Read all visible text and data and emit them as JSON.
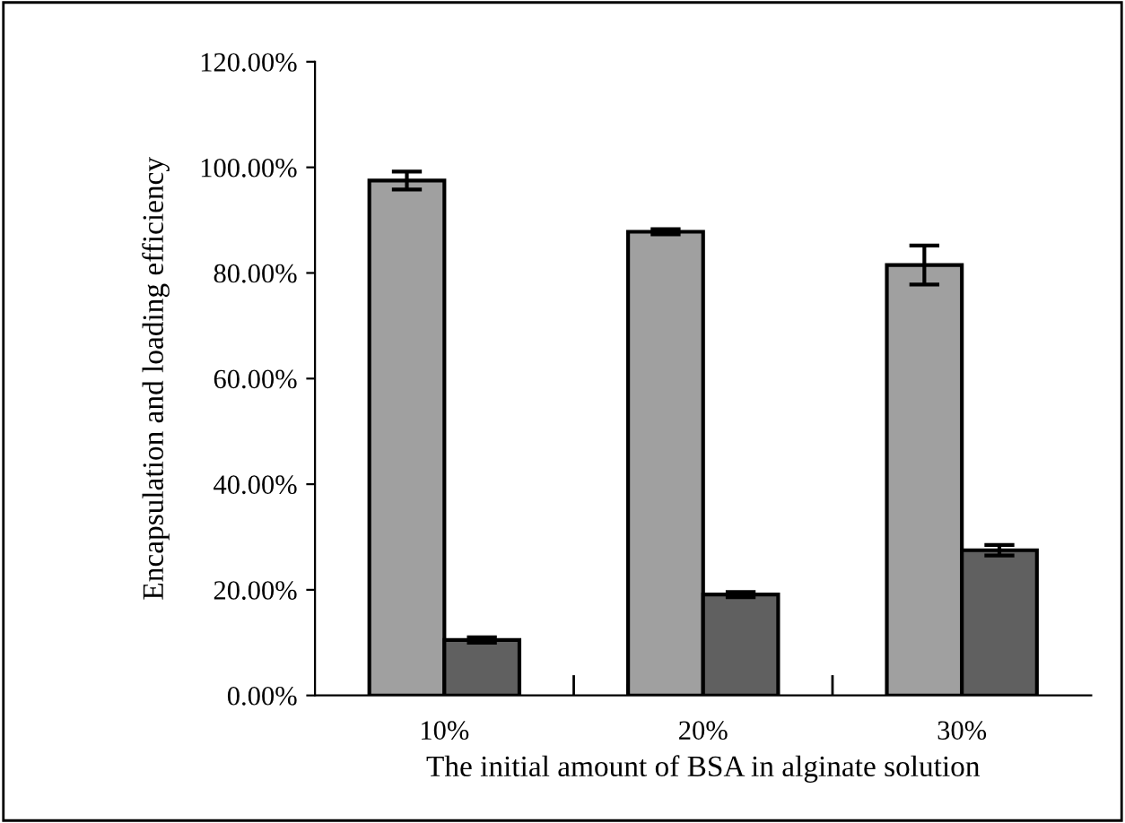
{
  "chart_data": {
    "type": "bar",
    "xlabel": "The initial amount of BSA in alginate solution",
    "ylabel": "Encapsulation and loading efficiency",
    "categories": [
      "10%",
      "20%",
      "30%"
    ],
    "series": [
      {
        "color": "#a0a0a0",
        "values": [
          97.5,
          87.8,
          81.5
        ],
        "errors": [
          1.7,
          0.5,
          3.7
        ]
      },
      {
        "color": "#606060",
        "values": [
          10.5,
          19.1,
          27.5
        ],
        "errors": [
          0.5,
          0.5,
          1
        ]
      }
    ],
    "ylim": [
      0,
      120
    ],
    "yticks": [
      {
        "value": 0,
        "label": "0.00%"
      },
      {
        "value": 20,
        "label": "20.00%"
      },
      {
        "value": 40,
        "label": "40.00%"
      },
      {
        "value": 60,
        "label": "60.00%"
      },
      {
        "value": 80,
        "label": "80.00%"
      },
      {
        "value": 100,
        "label": "100.00%"
      },
      {
        "value": 120,
        "label": "120.00%"
      }
    ],
    "grid": false,
    "legend": false
  }
}
